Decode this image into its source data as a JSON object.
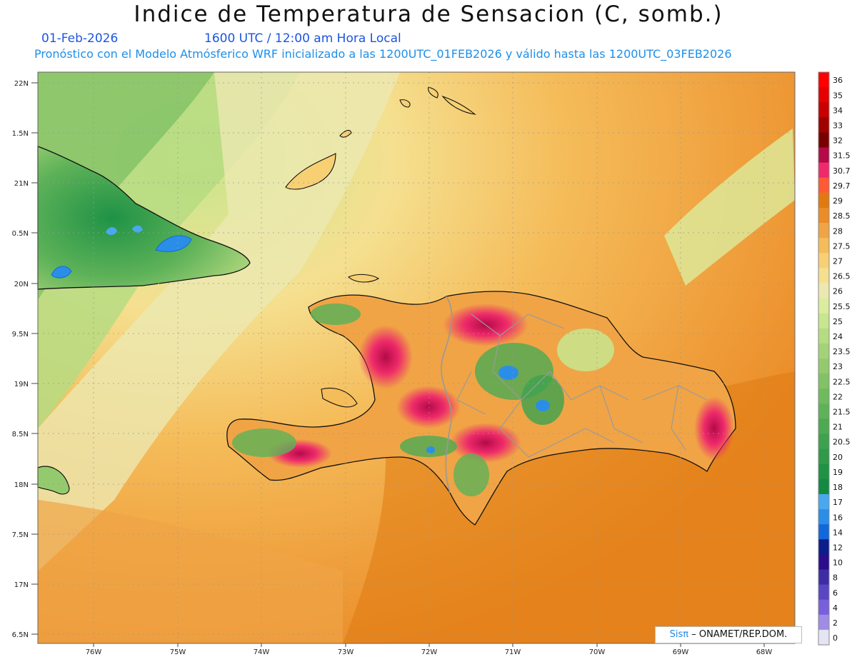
{
  "header": {
    "title": "Indice de Temperatura de Sensacion (C, somb.)",
    "date": "01-Feb-2026",
    "time": "1600 UTC / 12:00 am Hora Local",
    "model_line": "Pronóstico con el Modelo Atmósferico WRF inicializado a las 1200UTC_01FEB2026 y válido hasta las  1200UTC_03FEB2026"
  },
  "map": {
    "lat_labels": [
      "22N",
      "1.5N",
      "21N",
      "0.5N",
      "20N",
      "9.5N",
      "19N",
      "8.5N",
      "18N",
      "7.5N",
      "17N",
      "6.5N"
    ],
    "lon_labels": [
      "76W",
      "75W",
      "74W",
      "73W",
      "72W",
      "71W",
      "70W",
      "69W",
      "68W"
    ],
    "lat_range": [
      16.5,
      22.1
    ],
    "lon_range": [
      -76.7,
      -67.6
    ]
  },
  "colorbar": {
    "labels": [
      "36",
      "35",
      "34",
      "33",
      "32",
      "31.5",
      "30.7",
      "29.7",
      "29",
      "28.5",
      "28",
      "27.5",
      "27",
      "26.5",
      "26",
      "25.5",
      "25",
      "24",
      "23.5",
      "23",
      "22.5",
      "22",
      "21.5",
      "21",
      "20.5",
      "20",
      "19",
      "18",
      "17",
      "16",
      "14",
      "12",
      "10",
      "8",
      "6",
      "4",
      "2",
      "0"
    ],
    "colors": [
      "#ff0000",
      "#e60000",
      "#c80000",
      "#a00000",
      "#7a0000",
      "#b40a48",
      "#ee2a6a",
      "#ff5a36",
      "#e07a10",
      "#eb8c28",
      "#f0a446",
      "#f5bc5a",
      "#f8d074",
      "#f5e090",
      "#ece8b2",
      "#dcec9e",
      "#c8e68e",
      "#b6dc82",
      "#a4d278",
      "#94ca6e",
      "#82c266",
      "#70ba5e",
      "#5eb258",
      "#4caa52",
      "#3ca24e",
      "#2e9a4a",
      "#1f9246",
      "#128a42",
      "#4aa8ee",
      "#2a8ee8",
      "#1068dc",
      "#0c1e8c",
      "#2a0c8c",
      "#3e2ca4",
      "#5a46c4",
      "#7860dc",
      "#a08ce6",
      "#e4e4f4"
    ]
  },
  "credit": {
    "brand": "Sisπ",
    "org": "– ONAMET/REP.DOM."
  }
}
